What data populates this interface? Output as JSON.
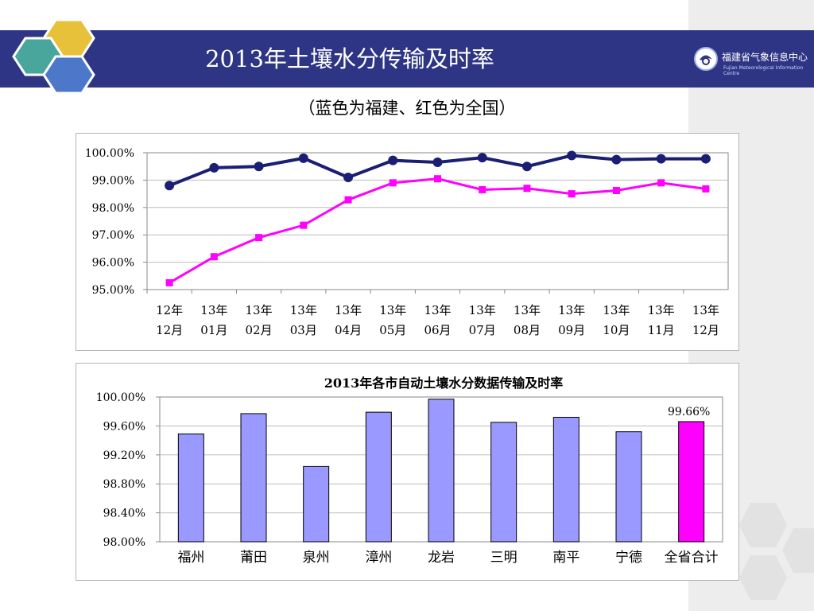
{
  "header": {
    "title": "2013年土壤水分传输及时率",
    "subtitle": "（蓝色为福建、红色为全国）",
    "logo_cn": "福建省气象信息中心",
    "logo_en": "Fujian Meteorological Information Centre"
  },
  "chart_data": [
    {
      "type": "line",
      "title": "",
      "categories": [
        "12年12月",
        "13年01月",
        "13年02月",
        "13年03月",
        "13年04月",
        "13年05月",
        "13年06月",
        "13年07月",
        "13年08月",
        "13年09月",
        "13年10月",
        "13年11月",
        "13年12月"
      ],
      "category_lines": [
        [
          "12年",
          "12月"
        ],
        [
          "13年",
          "01月"
        ],
        [
          "13年",
          "02月"
        ],
        [
          "13年",
          "03月"
        ],
        [
          "13年",
          "04月"
        ],
        [
          "13年",
          "05月"
        ],
        [
          "13年",
          "06月"
        ],
        [
          "13年",
          "07月"
        ],
        [
          "13年",
          "08月"
        ],
        [
          "13年",
          "09月"
        ],
        [
          "13年",
          "10月"
        ],
        [
          "13年",
          "11月"
        ],
        [
          "13年",
          "12月"
        ]
      ],
      "y_ticks": [
        "100.00%",
        "99.00%",
        "98.00%",
        "97.00%",
        "96.00%",
        "95.00%"
      ],
      "ylim": [
        95,
        100
      ],
      "grid": true,
      "series": [
        {
          "color": "#1b1f73",
          "marker": "circle",
          "values": [
            98.8,
            99.45,
            99.5,
            99.8,
            99.1,
            99.72,
            99.65,
            99.82,
            99.5,
            99.9,
            99.75,
            99.78,
            99.78
          ]
        },
        {
          "color": "#ff00ff",
          "marker": "square",
          "values": [
            95.25,
            96.2,
            96.9,
            97.35,
            98.28,
            98.9,
            99.05,
            98.65,
            98.7,
            98.5,
            98.62,
            98.9,
            98.68
          ]
        }
      ]
    },
    {
      "type": "bar",
      "title": "2013年各市自动土壤水分数据传输及时率",
      "categories": [
        "福州",
        "莆田",
        "泉州",
        "漳州",
        "龙岩",
        "三明",
        "南平",
        "宁德",
        "全省合计"
      ],
      "values": [
        99.49,
        99.77,
        99.04,
        99.79,
        99.97,
        99.65,
        99.72,
        99.52,
        99.66
      ],
      "bar_colors": [
        "#9999ff",
        "#9999ff",
        "#9999ff",
        "#9999ff",
        "#9999ff",
        "#9999ff",
        "#9999ff",
        "#9999ff",
        "#ff00ff"
      ],
      "data_labels": [
        "",
        "",
        "",
        "",
        "",
        "",
        "",
        "",
        "99.66%"
      ],
      "y_ticks": [
        "100.00%",
        "99.60%",
        "99.20%",
        "98.80%",
        "98.40%",
        "98.00%"
      ],
      "ylim": [
        98,
        100
      ],
      "grid": true
    }
  ]
}
